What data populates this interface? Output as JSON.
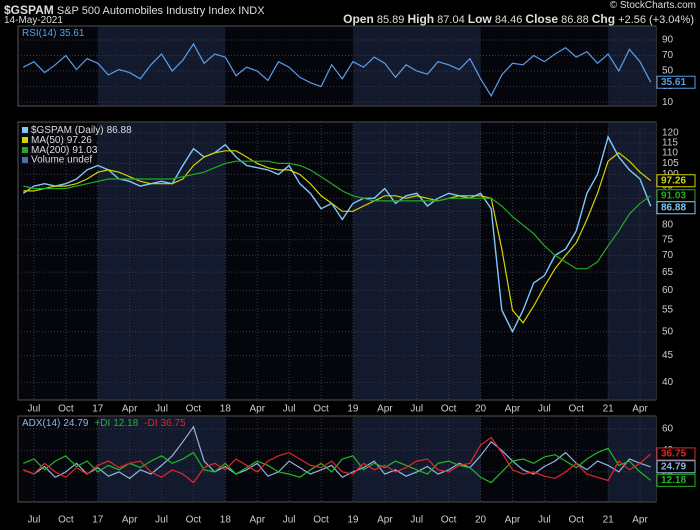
{
  "header": {
    "symbol": "$GSPAM",
    "name": "S&P 500 Automobiles Industry Index",
    "exchange": "INDX",
    "date": "14-May-2021",
    "credit": "© StockCharts.com",
    "quote": [
      {
        "label": "Open",
        "value": 85.89
      },
      {
        "label": "High",
        "value": 87.04
      },
      {
        "label": "Low",
        "value": 84.46
      },
      {
        "label": "Close",
        "value": 86.88
      },
      {
        "label": "Chg",
        "value": "+2.56 (+3.04%)"
      }
    ]
  },
  "chart_data": [
    {
      "type": "line",
      "legend": "horizontal",
      "xlim": [
        -0.5,
        59.5
      ],
      "ylim": [
        5,
        108
      ],
      "yticks": [
        10,
        30,
        50,
        70,
        90
      ],
      "grid": true,
      "series": [
        {
          "name": "RSI(14)",
          "color": "#5a9ee8",
          "values": [
            55,
            62,
            48,
            58,
            70,
            52,
            66,
            60,
            45,
            52,
            48,
            40,
            58,
            72,
            50,
            64,
            85,
            60,
            72,
            68,
            44,
            55,
            50,
            38,
            62,
            55,
            42,
            35,
            30,
            58,
            40,
            62,
            55,
            68,
            60,
            42,
            58,
            50,
            46,
            62,
            58,
            52,
            66,
            40,
            18,
            45,
            60,
            58,
            70,
            62,
            72,
            80,
            68,
            75,
            60,
            72,
            50,
            78,
            62,
            35.61
          ]
        }
      ]
    },
    {
      "type": "line",
      "legend": "vertical",
      "scale": "log",
      "xlim": [
        -0.5,
        59.5
      ],
      "ylim": [
        37,
        126
      ],
      "yticks": [
        40,
        45,
        50,
        55,
        60,
        65,
        70,
        75,
        80,
        85,
        90,
        95,
        100,
        105,
        110,
        115,
        120
      ],
      "grid": true,
      "xticks": [
        {
          "value": 1,
          "label": "Jul"
        },
        {
          "value": 4,
          "label": "Oct"
        },
        {
          "value": 7,
          "label": "17"
        },
        {
          "value": 10,
          "label": "Apr"
        },
        {
          "value": 13,
          "label": "Jul"
        },
        {
          "value": 16,
          "label": "Oct"
        },
        {
          "value": 19,
          "label": "18"
        },
        {
          "value": 22,
          "label": "Apr"
        },
        {
          "value": 25,
          "label": "Jul"
        },
        {
          "value": 28,
          "label": "Oct"
        },
        {
          "value": 31,
          "label": "19"
        },
        {
          "value": 34,
          "label": "Apr"
        },
        {
          "value": 37,
          "label": "Jul"
        },
        {
          "value": 40,
          "label": "Oct"
        },
        {
          "value": 43,
          "label": "20"
        },
        {
          "value": 46,
          "label": "Apr"
        },
        {
          "value": 49,
          "label": "Jul"
        },
        {
          "value": 52,
          "label": "Oct"
        },
        {
          "value": 55,
          "label": "21"
        },
        {
          "value": 58,
          "label": "Apr"
        }
      ],
      "volume_label": "Volume undef",
      "series": [
        {
          "name": "$GSPAM (Daily)",
          "color": "#7ec8f8",
          "values": [
            92,
            95,
            96,
            95,
            96,
            98,
            102,
            104,
            102,
            98,
            97,
            95,
            96,
            97,
            96,
            104,
            112,
            108,
            110,
            114,
            108,
            104,
            103,
            102,
            100,
            104,
            96,
            92,
            86,
            88,
            82,
            88,
            90,
            90,
            94,
            88,
            91,
            92,
            87,
            90,
            92,
            91,
            90,
            92,
            86,
            55,
            50,
            55,
            62,
            64,
            70,
            72,
            78,
            92,
            100,
            118,
            108,
            102,
            98,
            86.88
          ]
        },
        {
          "name": "MA(50)",
          "color": "#d4d400",
          "values": [
            93,
            93,
            94,
            95,
            95,
            96,
            98,
            101,
            102,
            101,
            99,
            97,
            96,
            96,
            96,
            98,
            104,
            108,
            110,
            111,
            111,
            108,
            105,
            103,
            102,
            102,
            100,
            96,
            91,
            88,
            85,
            85,
            87,
            89,
            91,
            91,
            90,
            91,
            90,
            89,
            90,
            91,
            91,
            91,
            90,
            72,
            55,
            52,
            56,
            61,
            66,
            70,
            74,
            82,
            92,
            106,
            110,
            106,
            101,
            97.26
          ]
        },
        {
          "name": "MA(200)",
          "color": "#22aa22",
          "values": [
            95,
            94,
            94,
            94,
            94,
            95,
            96,
            97,
            98,
            98,
            98,
            98,
            98,
            98,
            98,
            99,
            100,
            101,
            103,
            105,
            106,
            106,
            106,
            106,
            105,
            105,
            104,
            102,
            99,
            96,
            93,
            91,
            90,
            89,
            89,
            89,
            89,
            89,
            89,
            89,
            90,
            90,
            90,
            90,
            90,
            87,
            83,
            80,
            77,
            73,
            70,
            68,
            66,
            66,
            68,
            73,
            78,
            84,
            88,
            91.03
          ]
        }
      ]
    },
    {
      "type": "line",
      "legend": "horizontal",
      "xlim": [
        -0.5,
        59.5
      ],
      "ylim": [
        -8,
        72
      ],
      "yticks": [
        20,
        40,
        60
      ],
      "grid": true,
      "xticks": [
        {
          "value": 1,
          "label": "Jul"
        },
        {
          "value": 4,
          "label": "Oct"
        },
        {
          "value": 7,
          "label": "17"
        },
        {
          "value": 10,
          "label": "Apr"
        },
        {
          "value": 13,
          "label": "Jul"
        },
        {
          "value": 16,
          "label": "Oct"
        },
        {
          "value": 19,
          "label": "18"
        },
        {
          "value": 22,
          "label": "Apr"
        },
        {
          "value": 25,
          "label": "Jul"
        },
        {
          "value": 28,
          "label": "Oct"
        },
        {
          "value": 31,
          "label": "19"
        },
        {
          "value": 34,
          "label": "Apr"
        },
        {
          "value": 37,
          "label": "Jul"
        },
        {
          "value": 40,
          "label": "Oct"
        },
        {
          "value": 43,
          "label": "20"
        },
        {
          "value": 46,
          "label": "Apr"
        },
        {
          "value": 49,
          "label": "Jul"
        },
        {
          "value": 52,
          "label": "Oct"
        },
        {
          "value": 55,
          "label": "21"
        },
        {
          "value": 58,
          "label": "Apr"
        }
      ],
      "series": [
        {
          "name": "ADX(14)",
          "color": "#8fb6e0",
          "values": [
            22,
            18,
            25,
            15,
            20,
            28,
            18,
            24,
            16,
            20,
            14,
            22,
            18,
            26,
            35,
            48,
            62,
            30,
            20,
            25,
            18,
            22,
            28,
            16,
            20,
            30,
            24,
            18,
            22,
            26,
            15,
            20,
            24,
            30,
            18,
            22,
            16,
            20,
            25,
            18,
            22,
            28,
            24,
            35,
            48,
            40,
            30,
            22,
            18,
            25,
            30,
            38,
            28,
            22,
            30,
            26,
            20,
            32,
            28,
            24.79
          ]
        },
        {
          "name": "+DI",
          "color": "#22b822",
          "values": [
            28,
            32,
            22,
            30,
            35,
            25,
            30,
            20,
            26,
            22,
            28,
            24,
            30,
            35,
            28,
            32,
            38,
            22,
            20,
            28,
            18,
            24,
            30,
            26,
            20,
            18,
            15,
            22,
            28,
            20,
            32,
            35,
            22,
            28,
            24,
            30,
            26,
            22,
            18,
            28,
            30,
            26,
            24,
            15,
            10,
            20,
            30,
            32,
            28,
            34,
            36,
            30,
            24,
            32,
            38,
            42,
            26,
            30,
            20,
            12.18
          ]
        },
        {
          "name": "-DI",
          "color": "#e02828",
          "values": [
            22,
            18,
            28,
            20,
            15,
            24,
            18,
            26,
            30,
            24,
            28,
            30,
            20,
            15,
            22,
            18,
            10,
            24,
            28,
            22,
            32,
            26,
            20,
            30,
            35,
            38,
            32,
            26,
            24,
            30,
            20,
            18,
            28,
            22,
            26,
            20,
            24,
            30,
            32,
            22,
            20,
            26,
            28,
            45,
            52,
            38,
            22,
            18,
            20,
            16,
            14,
            20,
            28,
            18,
            15,
            12,
            30,
            22,
            28,
            36.75
          ]
        }
      ]
    }
  ]
}
